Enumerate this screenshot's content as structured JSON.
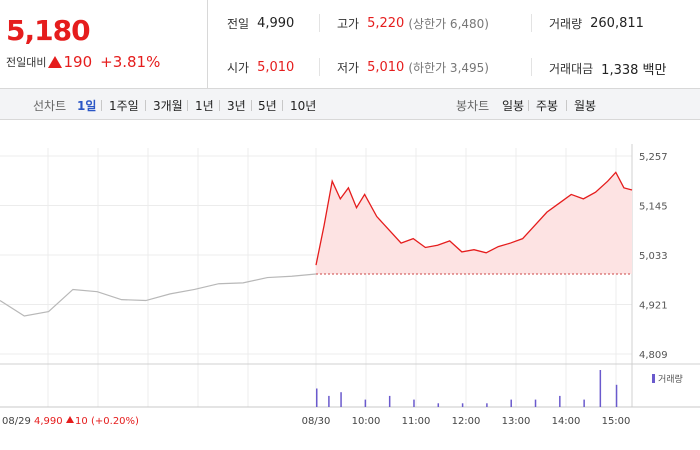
{
  "summary": {
    "price": "5,180",
    "change_label": "전일대비",
    "change": "190",
    "change_pct": "+3.81%"
  },
  "stats": {
    "prev_close_label": "전일",
    "prev_close": "4,990",
    "open_label": "시가",
    "open": "5,010",
    "high_label": "고가",
    "high": "5,220",
    "upper_limit": "(상한가 6,480)",
    "low_label": "저가",
    "low": "5,010",
    "lower_limit": "(하한가 3,495)",
    "volume_label": "거래량",
    "volume": "260,811",
    "value_label": "거래대금",
    "value": "1,338 백만"
  },
  "tabs": {
    "line_header": "선차트",
    "line_periods": [
      "1일",
      "1주일",
      "3개월",
      "1년",
      "3년",
      "5년",
      "10년"
    ],
    "selected_period": "1일",
    "candle_header": "봉차트",
    "candle_periods": [
      "일봉",
      "주봉",
      "월봉"
    ]
  },
  "chart_data": {
    "type": "line",
    "ylim": [
      4809,
      5257
    ],
    "y_ticks": [
      "5,257",
      "5,145",
      "5,033",
      "4,921",
      "4,809"
    ],
    "x_ticks": [
      "08/30",
      "10:00",
      "11:00",
      "12:00",
      "13:00",
      "14:00",
      "15:00"
    ],
    "prev_day_label": "08/29",
    "prev_day_close": "4,990",
    "prev_day_change": "10",
    "prev_day_change_pct": "(+0.20%)",
    "baseline": 4990,
    "volume_legend": "거래량",
    "series": [
      {
        "x": [
          "08/29 09:00",
          "08/29 09:30",
          "08/29 10:00",
          "08/29 10:30",
          "08/29 11:00",
          "08/29 11:30",
          "08/29 12:00",
          "08/29 12:30",
          "08/29 13:00",
          "08/29 13:30",
          "08/29 14:00",
          "08/29 14:30",
          "08/29 15:00",
          "08/29 15:30"
        ],
        "values": [
          4930,
          4895,
          4905,
          4955,
          4950,
          4932,
          4930,
          4945,
          4955,
          4968,
          4970,
          4982,
          4985,
          4990
        ]
      },
      {
        "x": [
          "08/30 09:00",
          "08/30 09:10",
          "08/30 09:20",
          "08/30 09:30",
          "08/30 09:40",
          "08/30 09:50",
          "08/30 10:00",
          "08/30 10:15",
          "08/30 10:30",
          "08/30 10:45",
          "08/30 11:00",
          "08/30 11:15",
          "08/30 11:30",
          "08/30 11:45",
          "08/30 12:00",
          "08/30 12:15",
          "08/30 12:30",
          "08/30 12:45",
          "08/30 13:00",
          "08/30 13:15",
          "08/30 13:30",
          "08/30 13:45",
          "08/30 14:00",
          "08/30 14:15",
          "08/30 14:30",
          "08/30 14:45",
          "08/30 15:00",
          "08/30 15:10",
          "08/30 15:20",
          "08/30 15:30"
        ],
        "values": [
          5010,
          5100,
          5200,
          5160,
          5185,
          5140,
          5170,
          5120,
          5090,
          5060,
          5070,
          5050,
          5055,
          5065,
          5040,
          5045,
          5038,
          5052,
          5060,
          5070,
          5100,
          5130,
          5150,
          5170,
          5160,
          5175,
          5200,
          5220,
          5185,
          5180
        ]
      }
    ],
    "volume": [
      {
        "x": "08/30 09:00",
        "v": 5
      },
      {
        "x": "08/30 09:15",
        "v": 3
      },
      {
        "x": "08/30 09:30",
        "v": 4
      },
      {
        "x": "08/30 10:00",
        "v": 2
      },
      {
        "x": "08/30 10:30",
        "v": 3
      },
      {
        "x": "08/30 11:00",
        "v": 2
      },
      {
        "x": "08/30 11:30",
        "v": 1
      },
      {
        "x": "08/30 12:00",
        "v": 1
      },
      {
        "x": "08/30 12:30",
        "v": 1
      },
      {
        "x": "08/30 13:00",
        "v": 2
      },
      {
        "x": "08/30 13:30",
        "v": 2
      },
      {
        "x": "08/30 14:00",
        "v": 3
      },
      {
        "x": "08/30 14:30",
        "v": 2
      },
      {
        "x": "08/30 14:50",
        "v": 10
      },
      {
        "x": "08/30 15:10",
        "v": 6
      }
    ]
  }
}
